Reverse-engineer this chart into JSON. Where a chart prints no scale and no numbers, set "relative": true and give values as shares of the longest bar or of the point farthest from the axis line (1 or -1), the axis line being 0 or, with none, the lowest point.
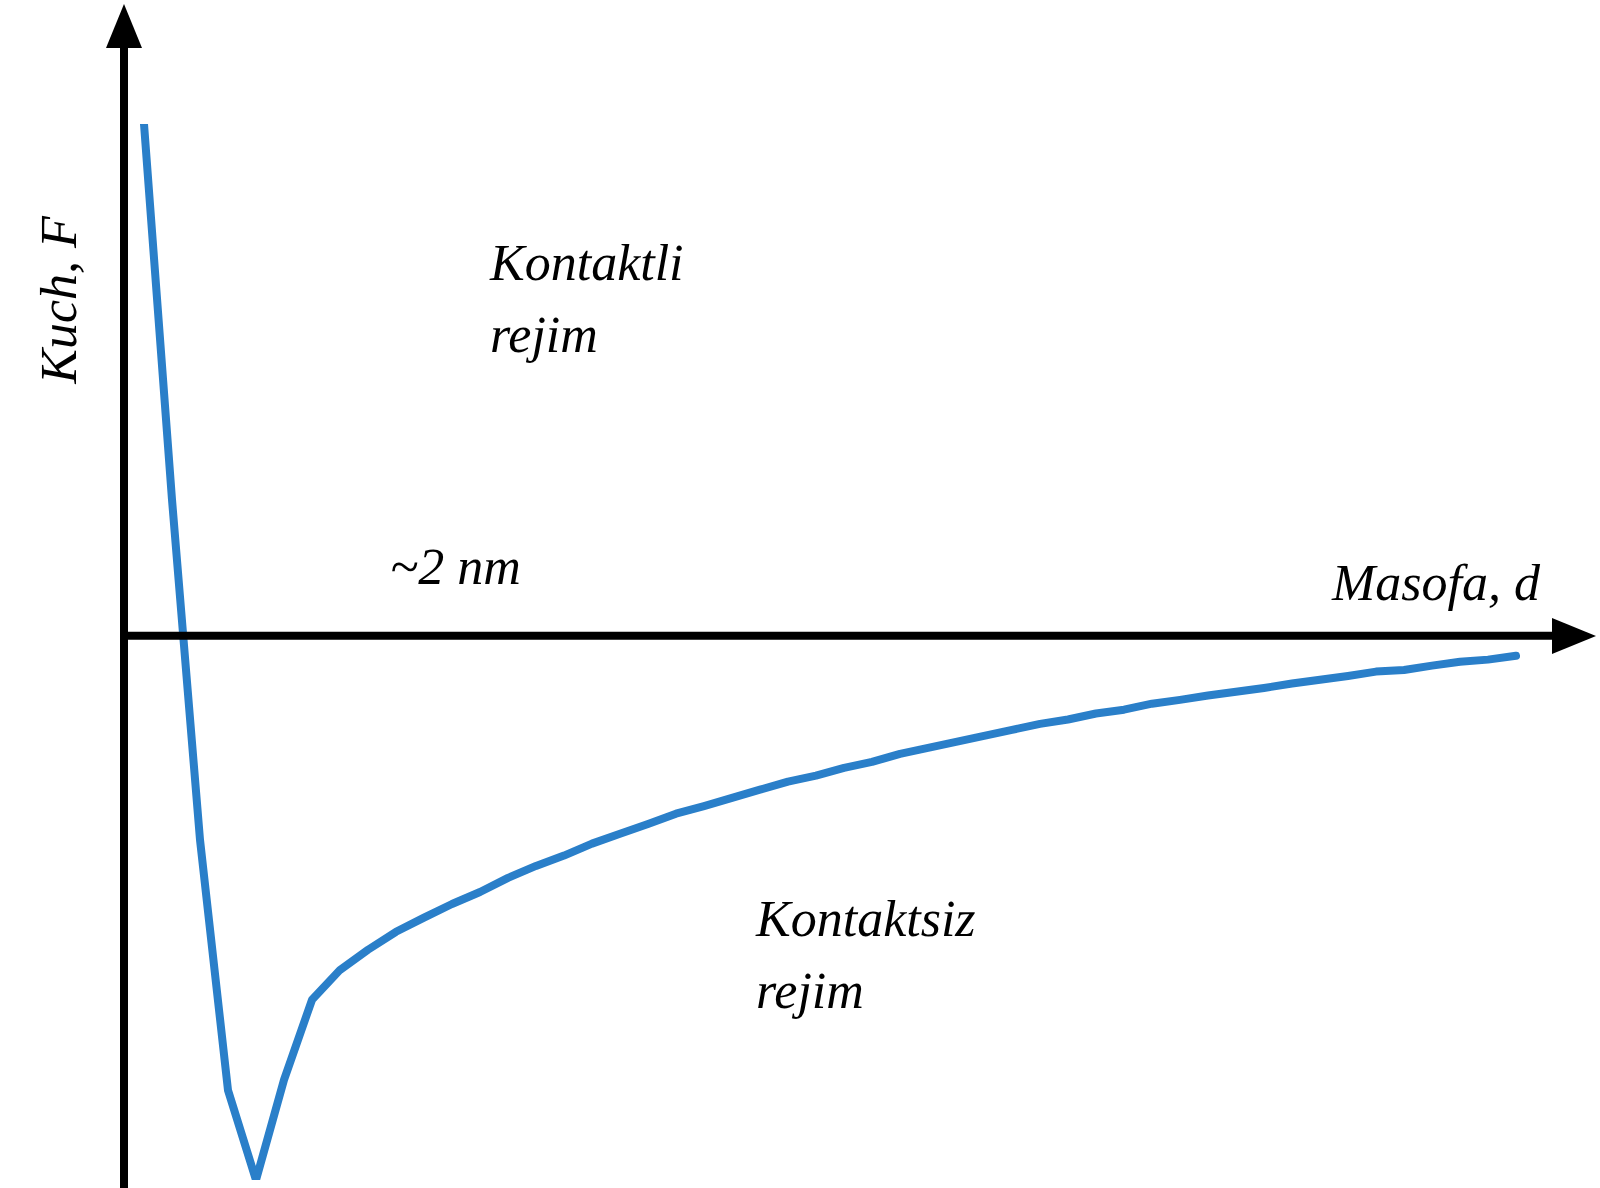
{
  "chart_data": {
    "type": "line",
    "relative": true,
    "xlabel": "Masofa, d",
    "ylabel": "Kuch, F",
    "annotations": [
      "~2 nm",
      "Kontaktli rejim",
      "Kontaktsiz rejim"
    ],
    "categories": [
      null,
      null,
      null,
      null,
      null,
      null,
      null,
      null,
      null,
      null,
      null,
      null,
      null,
      null,
      null,
      null,
      null,
      null,
      null,
      null,
      null,
      null,
      null,
      null,
      null,
      null,
      null,
      null,
      null,
      null,
      null,
      null,
      null,
      null,
      null,
      null,
      null,
      null,
      null,
      null,
      null,
      null,
      null,
      null,
      null,
      null,
      null,
      null,
      null,
      null
    ],
    "series": [
      {
        "color": "#2a7fc9",
        "values": [
          0.94,
          0.25,
          -0.375,
          -0.835,
          -1,
          -0.816,
          -0.669,
          -0.614,
          -0.577,
          -0.544,
          -0.518,
          -0.493,
          -0.471,
          -0.445,
          -0.423,
          -0.404,
          -0.382,
          -0.364,
          -0.346,
          -0.327,
          -0.313,
          -0.298,
          -0.283,
          -0.268,
          -0.257,
          -0.243,
          -0.232,
          -0.217,
          -0.206,
          -0.195,
          -0.184,
          -0.173,
          -0.162,
          -0.154,
          -0.143,
          -0.136,
          -0.125,
          -0.118,
          -0.11,
          -0.103,
          -0.096,
          -0.088,
          -0.081,
          -0.074,
          -0.066,
          -0.063,
          -0.055,
          -0.048,
          -0.044,
          -0.037
        ]
      }
    ],
    "grid": false,
    "legend": false,
    "marker": "none",
    "line_style": "solid"
  }
}
